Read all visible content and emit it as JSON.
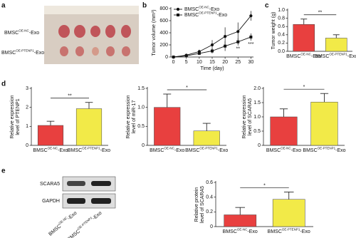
{
  "panel_labels": [
    "a",
    "b",
    "c",
    "d",
    "e"
  ],
  "panel_a": {
    "labels": [
      {
        "base": "BMSC",
        "sup": "OE-NC",
        "end": "-Exo"
      },
      {
        "base": "BMSC",
        "sup": "OE-PTENP1",
        "end": "-Exo"
      }
    ]
  },
  "blot": {
    "bands": [
      "SCARA5",
      "GAPDH"
    ],
    "lanes": [
      {
        "base": "BMSC",
        "sup": "OE-NC",
        "end": "-Exo"
      },
      {
        "base": "BMSC",
        "sup": "OE-PTENP1",
        "end": "-Exo"
      }
    ]
  },
  "chart_data": [
    {
      "type": "line",
      "ylabel": [
        "Tumor volume (mm³)"
      ],
      "xlabel": "Time (day)",
      "x": [
        0,
        5,
        10,
        15,
        20,
        25,
        30
      ],
      "xlim": [
        -1,
        31
      ],
      "xticks": [
        0,
        5,
        10,
        15,
        20,
        25,
        30
      ],
      "ylim": [
        0,
        800
      ],
      "yticks": [
        0,
        200,
        400,
        600,
        800
      ],
      "series": [
        {
          "name": {
            "base": "BMSC",
            "sup": "OE-NC",
            "end": "-Exo"
          },
          "color": "#111111",
          "marker": "circle",
          "values": [
            0,
            30,
            90,
            200,
            340,
            420,
            680
          ],
          "errors": [
            0,
            10,
            30,
            80,
            150,
            150,
            80
          ]
        },
        {
          "name": {
            "base": "BMSC",
            "sup": "OE-PTENP1",
            "end": "-Exo"
          },
          "color": "#111111",
          "marker": "square",
          "values": [
            0,
            20,
            60,
            100,
            180,
            250,
            330
          ],
          "errors": [
            0,
            10,
            20,
            40,
            80,
            60,
            60
          ]
        }
      ],
      "annotations": [
        {
          "text": "**",
          "x": 25
        },
        {
          "text": "***",
          "x": 30
        }
      ]
    },
    {
      "type": "bar",
      "ylabel": [
        "Tumor weight (g)"
      ],
      "categories": [
        {
          "base": "BMSC",
          "sup": "OE-NC",
          "end": "-Exo"
        },
        {
          "base": "BMSC",
          "sup": "OE-PTENP1",
          "end": "-Exo"
        }
      ],
      "colors": [
        "#e8403f",
        "#f2ea48"
      ],
      "values": [
        0.65,
        0.32
      ],
      "errors": [
        0.13,
        0.08
      ],
      "ylim": [
        0,
        1
      ],
      "yticks": [
        {
          "value": 0,
          "label": "0.0"
        },
        {
          "value": 0.2,
          "label": "0.2"
        },
        {
          "value": 0.4,
          "label": "0.4"
        },
        {
          "value": 0.6,
          "label": "0.6"
        },
        {
          "value": 0.8,
          "label": "0.8"
        },
        {
          "value": 1,
          "label": "1.0"
        }
      ],
      "significance": "**"
    },
    {
      "type": "bar",
      "ylabel": [
        "Relative expression",
        "level of PTENP1"
      ],
      "categories": [
        {
          "base": "BMSC",
          "sup": "OE-NC",
          "end": "-Exo"
        },
        {
          "base": "BMSC",
          "sup": "OE-PTENP1",
          "end": "-Exo"
        }
      ],
      "colors": [
        "#e8403f",
        "#f2ea48"
      ],
      "values": [
        1.05,
        1.93
      ],
      "errors": [
        0.22,
        0.33
      ],
      "ylim": [
        0,
        3
      ],
      "yticks": [
        0,
        1,
        2,
        3
      ],
      "significance": "**"
    },
    {
      "type": "bar",
      "ylabel": [
        "Relative expression",
        "level of miR-17"
      ],
      "categories": [
        {
          "base": "BMSC",
          "sup": "OE-NC",
          "end": "-Exo"
        },
        {
          "base": "BMSC",
          "sup": "OE-PTENP1",
          "end": "-Exo"
        }
      ],
      "colors": [
        "#e8403f",
        "#f2ea48"
      ],
      "values": [
        1.0,
        0.38
      ],
      "errors": [
        0.35,
        0.2
      ],
      "ylim": [
        0,
        1.5
      ],
      "yticks": [
        0,
        0.5,
        {
          "value": 1,
          "label": "1.0"
        },
        1.5
      ],
      "significance": "*"
    },
    {
      "type": "bar",
      "ylabel": [
        "Relative expression",
        "level of SCARA5"
      ],
      "categories": [
        {
          "base": "BMSC",
          "sup": "OE-NC",
          "end": "-Exo"
        },
        {
          "base": "BMSC",
          "sup": "OE-PTENP1",
          "end": "-Exo"
        }
      ],
      "colors": [
        "#e8403f",
        "#f2ea48"
      ],
      "values": [
        1.0,
        1.52
      ],
      "errors": [
        0.28,
        0.3
      ],
      "ylim": [
        0,
        2
      ],
      "yticks": [
        0,
        0.5,
        {
          "value": 1,
          "label": "1.0"
        },
        1.5,
        {
          "value": 2,
          "label": "2.0"
        }
      ],
      "significance": "*"
    },
    {
      "type": "bar",
      "ylabel": [
        "Relative protein",
        "level of SCARA5"
      ],
      "categories": [
        {
          "base": "BMSC",
          "sup": "OE-NC",
          "end": "-Exo"
        },
        {
          "base": "BMSC",
          "sup": "OE-PTENP1",
          "end": "-Exo"
        }
      ],
      "colors": [
        "#e8403f",
        "#f2ea48"
      ],
      "values": [
        0.16,
        0.37
      ],
      "errors": [
        0.1,
        0.1
      ],
      "ylim": [
        0,
        0.6
      ],
      "yticks": [
        0,
        0.2,
        0.4,
        0.6
      ],
      "significance": "*"
    }
  ]
}
